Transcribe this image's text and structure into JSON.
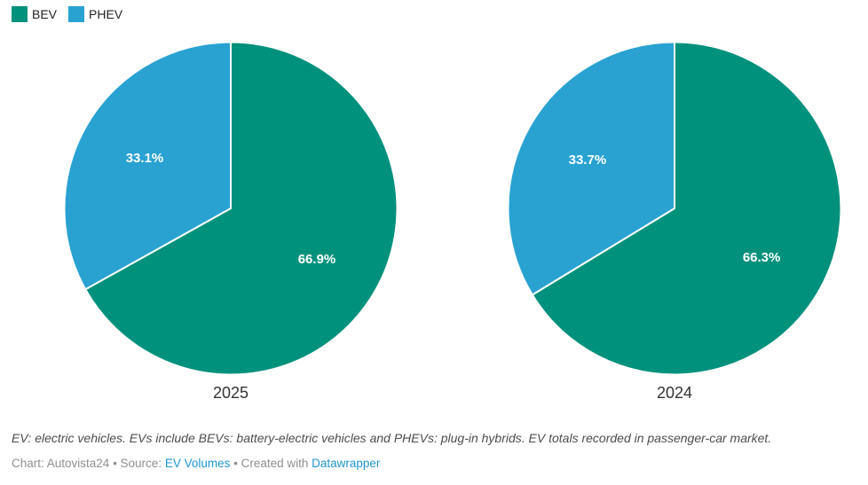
{
  "legend": {
    "items": [
      {
        "label": "BEV",
        "color": "#00917c"
      },
      {
        "label": "PHEV",
        "color": "#29a2d2"
      }
    ]
  },
  "chart_data": [
    {
      "type": "pie",
      "title": "2025",
      "labels": [
        "BEV",
        "PHEV"
      ],
      "values": [
        66.9,
        33.1
      ],
      "value_labels": [
        "66.9%",
        "33.1%"
      ],
      "colors": [
        "#00917c",
        "#29a2d2"
      ],
      "start_angle_deg": 0,
      "direction": "clockwise",
      "slice_label_color": "#ffffff"
    },
    {
      "type": "pie",
      "title": "2024",
      "labels": [
        "BEV",
        "PHEV"
      ],
      "values": [
        66.3,
        33.7
      ],
      "value_labels": [
        "66.3%",
        "33.7%"
      ],
      "colors": [
        "#00917c",
        "#29a2d2"
      ],
      "start_angle_deg": 0,
      "direction": "clockwise",
      "slice_label_color": "#ffffff"
    }
  ],
  "footer": {
    "note": "EV: electric vehicles. EVs include BEVs: battery-electric vehicles and PHEVs: plug-in hybrids. EV totals recorded in passenger-car market.",
    "byline": {
      "prefix": "Chart: Autovista24 • Source: ",
      "source_link": "EV Volumes",
      "middle": " • Created with ",
      "tool_link": "Datawrapper"
    }
  },
  "colors": {
    "bev": "#00917c",
    "phev": "#29a2d2",
    "link": "#2196d3",
    "note_text": "#4d4d4d",
    "byline_text": "#8f8f8f",
    "year_label_text": "#333333",
    "slice_divider": "#ffffff"
  }
}
